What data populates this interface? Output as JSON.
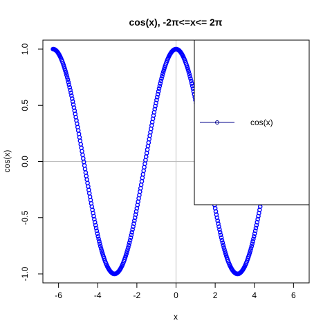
{
  "chart_data": {
    "type": "scatter",
    "title": "cos(x), -2π<=x<= 2π",
    "xlabel": "x",
    "ylabel": "cos(x)",
    "xlim": [
      -6.8,
      6.8
    ],
    "ylim": [
      -1.08,
      1.08
    ],
    "x_ticks": [
      -6,
      -4,
      -2,
      0,
      2,
      4,
      6
    ],
    "y_ticks": [
      -1.0,
      -0.5,
      0.0,
      0.5,
      1.0
    ],
    "x_tick_labels": [
      "-6",
      "-4",
      "-2",
      "0",
      "2",
      "4",
      "6"
    ],
    "y_tick_labels": [
      "-1.0",
      "-0.5",
      "0.0",
      "0.5",
      "1.0"
    ],
    "x_range": [
      -6.283185,
      6.283185
    ],
    "points_count": 400,
    "reference_lines": {
      "h": 0,
      "v": 0,
      "color": "#bebebe"
    },
    "series": [
      {
        "name": "cos(x)",
        "function": "cos",
        "color": "#0000ff",
        "marker": "open-circle"
      }
    ],
    "legend": {
      "position": "top-right",
      "entries": [
        "cos(x)"
      ],
      "line_color": "#00008b"
    },
    "grid": false
  }
}
